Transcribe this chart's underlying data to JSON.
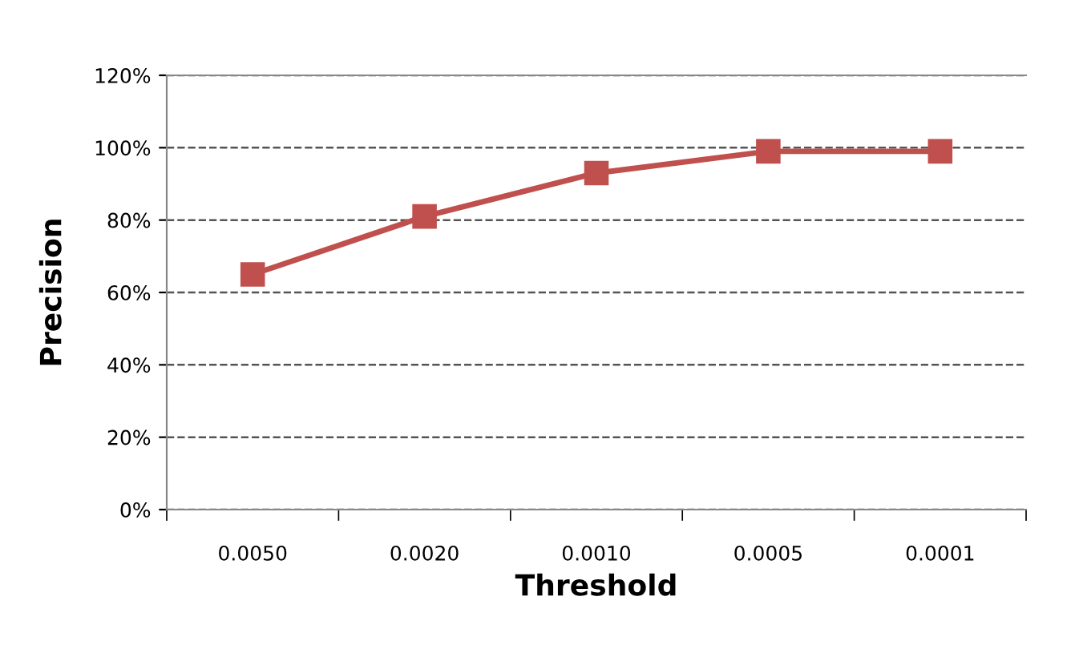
{
  "chart_data": {
    "type": "line",
    "xlabel": "Threshold",
    "ylabel": "Precision",
    "categories": [
      "0.0050",
      "0.0020",
      "0.0010",
      "0.0005",
      "0.0001"
    ],
    "series": [
      {
        "color": "#c0504d",
        "values": [
          65,
          81,
          93,
          99,
          99
        ]
      }
    ],
    "ylim": [
      0,
      120
    ],
    "yticks": [
      {
        "value": 0,
        "label": "0%"
      },
      {
        "value": 20,
        "label": "20%"
      },
      {
        "value": 40,
        "label": "40%"
      },
      {
        "value": 60,
        "label": "60%"
      },
      {
        "value": 80,
        "label": "80%"
      },
      {
        "value": 100,
        "label": "100%"
      },
      {
        "value": 120,
        "label": "120%"
      }
    ],
    "grid": "y",
    "marker": "square",
    "line_style": "solid"
  }
}
